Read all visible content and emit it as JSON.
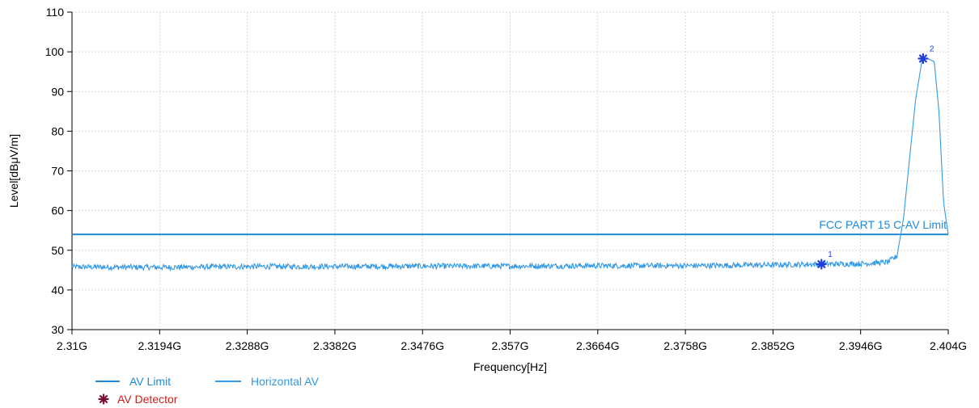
{
  "chart_data": {
    "type": "line",
    "ylabel": "Level[dBμV/m]",
    "xlabel": "Frequency[Hz]",
    "xlim": [
      2.31,
      2.404
    ],
    "ylim": [
      30,
      110
    ],
    "y_ticks": [
      30,
      40,
      50,
      60,
      70,
      80,
      90,
      100,
      110
    ],
    "x_ticks": [
      2.31,
      2.3194,
      2.3288,
      2.3382,
      2.3476,
      2.357,
      2.3664,
      2.3758,
      2.3852,
      2.3946,
      2.404
    ],
    "x_tick_labels": [
      "2.31G",
      "2.3194G",
      "2.3288G",
      "2.3382G",
      "2.3476G",
      "2.357G",
      "2.3664G",
      "2.3758G",
      "2.3852G",
      "2.3946G",
      "2.404G"
    ],
    "grid": true,
    "series": [
      {
        "name": "AV Limit",
        "color": "#1f8ad9",
        "x": [
          2.31,
          2.404
        ],
        "y": [
          54,
          54
        ]
      },
      {
        "name": "Horizontal AV",
        "color": "#3399e6",
        "x": [
          2.31,
          2.3194,
          2.3288,
          2.3382,
          2.3476,
          2.357,
          2.3664,
          2.3758,
          2.3852,
          2.39,
          2.3946,
          2.3975,
          2.3985,
          2.3992,
          2.3998,
          2.4005,
          2.4012,
          2.4018,
          2.4025,
          2.403,
          2.4035,
          2.404
        ],
        "y": [
          45.8,
          45.7,
          45.9,
          45.9,
          46.0,
          46.0,
          46.1,
          46.1,
          46.3,
          46.5,
          46.6,
          47.0,
          48.5,
          58.0,
          72.0,
          88.0,
          98.0,
          98.3,
          97.5,
          85.0,
          62.0,
          54.0
        ],
        "noise": 0.7
      }
    ],
    "limit_annotation": "FCC PART 15 C-AV Limit",
    "markers": [
      {
        "label": "1",
        "x": 2.3904,
        "y": 46.5
      },
      {
        "label": "2",
        "x": 2.4013,
        "y": 98.3
      }
    ],
    "legend": {
      "placement": "bottom-left",
      "entries": [
        "AV Limit",
        "Horizontal AV",
        "AV Detector"
      ],
      "detector_label": "AV Detector",
      "detector_color": "#cc1f1f",
      "marker_color": "#1f3fd6",
      "limit_text_color": "#1f8ad9"
    }
  }
}
